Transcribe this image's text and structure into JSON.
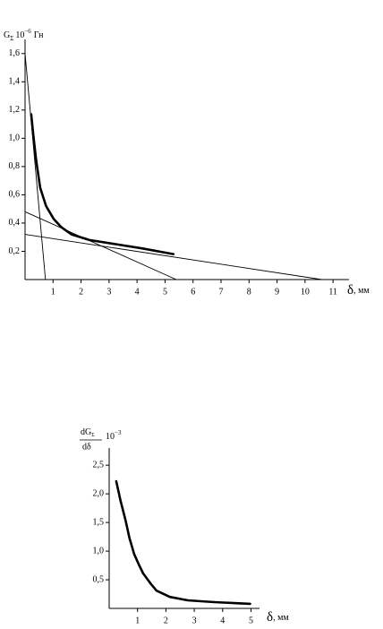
{
  "chart_data": [
    {
      "type": "line",
      "ylabel": {
        "symbol": "G",
        "subscript": "Σ",
        "factor": "10",
        "exponent": "−6",
        "unit": "Гн"
      },
      "xlabel": {
        "symbol": "δ",
        "unit": ", мм"
      },
      "xlim": [
        0,
        11.57
      ],
      "ylim": [
        0,
        1.7
      ],
      "xticks": [
        1,
        2,
        3,
        4,
        5,
        6,
        7,
        8,
        9,
        10,
        11
      ],
      "yticks": [
        {
          "value": 0.2,
          "label": "0,2"
        },
        {
          "value": 0.4,
          "label": "0,4"
        },
        {
          "value": 0.6,
          "label": "0,6"
        },
        {
          "value": 0.8,
          "label": "0,8"
        },
        {
          "value": 1.0,
          "label": "1,0"
        },
        {
          "value": 1.2,
          "label": "1,2"
        },
        {
          "value": 1.4,
          "label": "1,4"
        },
        {
          "value": 1.6,
          "label": "1,6"
        }
      ],
      "series": [
        {
          "color": "#000000",
          "x": [
            0.22,
            0.29,
            0.4,
            0.54,
            0.75,
            1.02,
            1.3,
            1.66,
            2.3,
            3.26,
            4.2,
            5.3
          ],
          "values": [
            1.17,
            1.03,
            0.84,
            0.65,
            0.52,
            0.43,
            0.37,
            0.32,
            0.28,
            0.25,
            0.22,
            0.18
          ]
        },
        {
          "color": "#000000",
          "x": [
            0,
            0.73
          ],
          "values": [
            1.6,
            0
          ]
        },
        {
          "color": "#000000",
          "x": [
            0,
            5.4
          ],
          "values": [
            0.48,
            0
          ]
        },
        {
          "color": "#000000",
          "x": [
            0,
            10.6
          ],
          "values": [
            0.32,
            0
          ]
        }
      ]
    },
    {
      "type": "line",
      "ylabel": {
        "numerator": "dG",
        "subscript": "Σ",
        "denominator": "dδ",
        "factor": "10",
        "exponent": "−3"
      },
      "xlabel": {
        "symbol": "δ",
        "unit": ", мм"
      },
      "xlim": [
        0,
        5.3
      ],
      "ylim": [
        0,
        2.8
      ],
      "xticks": [
        1,
        2,
        3,
        4,
        5
      ],
      "yticks": [
        {
          "value": 0.5,
          "label": "0,5"
        },
        {
          "value": 1.0,
          "label": "1,0"
        },
        {
          "value": 1.5,
          "label": "1,5"
        },
        {
          "value": 2.0,
          "label": "2,0"
        },
        {
          "value": 2.5,
          "label": "2,5"
        }
      ],
      "series": [
        {
          "color": "#000000",
          "x": [
            0.25,
            0.4,
            0.57,
            0.72,
            0.88,
            1.05,
            1.2,
            1.45,
            1.67,
            2.14,
            2.77,
            3.7,
            4.97
          ],
          "values": [
            2.22,
            1.88,
            1.55,
            1.22,
            0.95,
            0.76,
            0.61,
            0.44,
            0.31,
            0.2,
            0.14,
            0.11,
            0.08
          ]
        }
      ]
    }
  ]
}
